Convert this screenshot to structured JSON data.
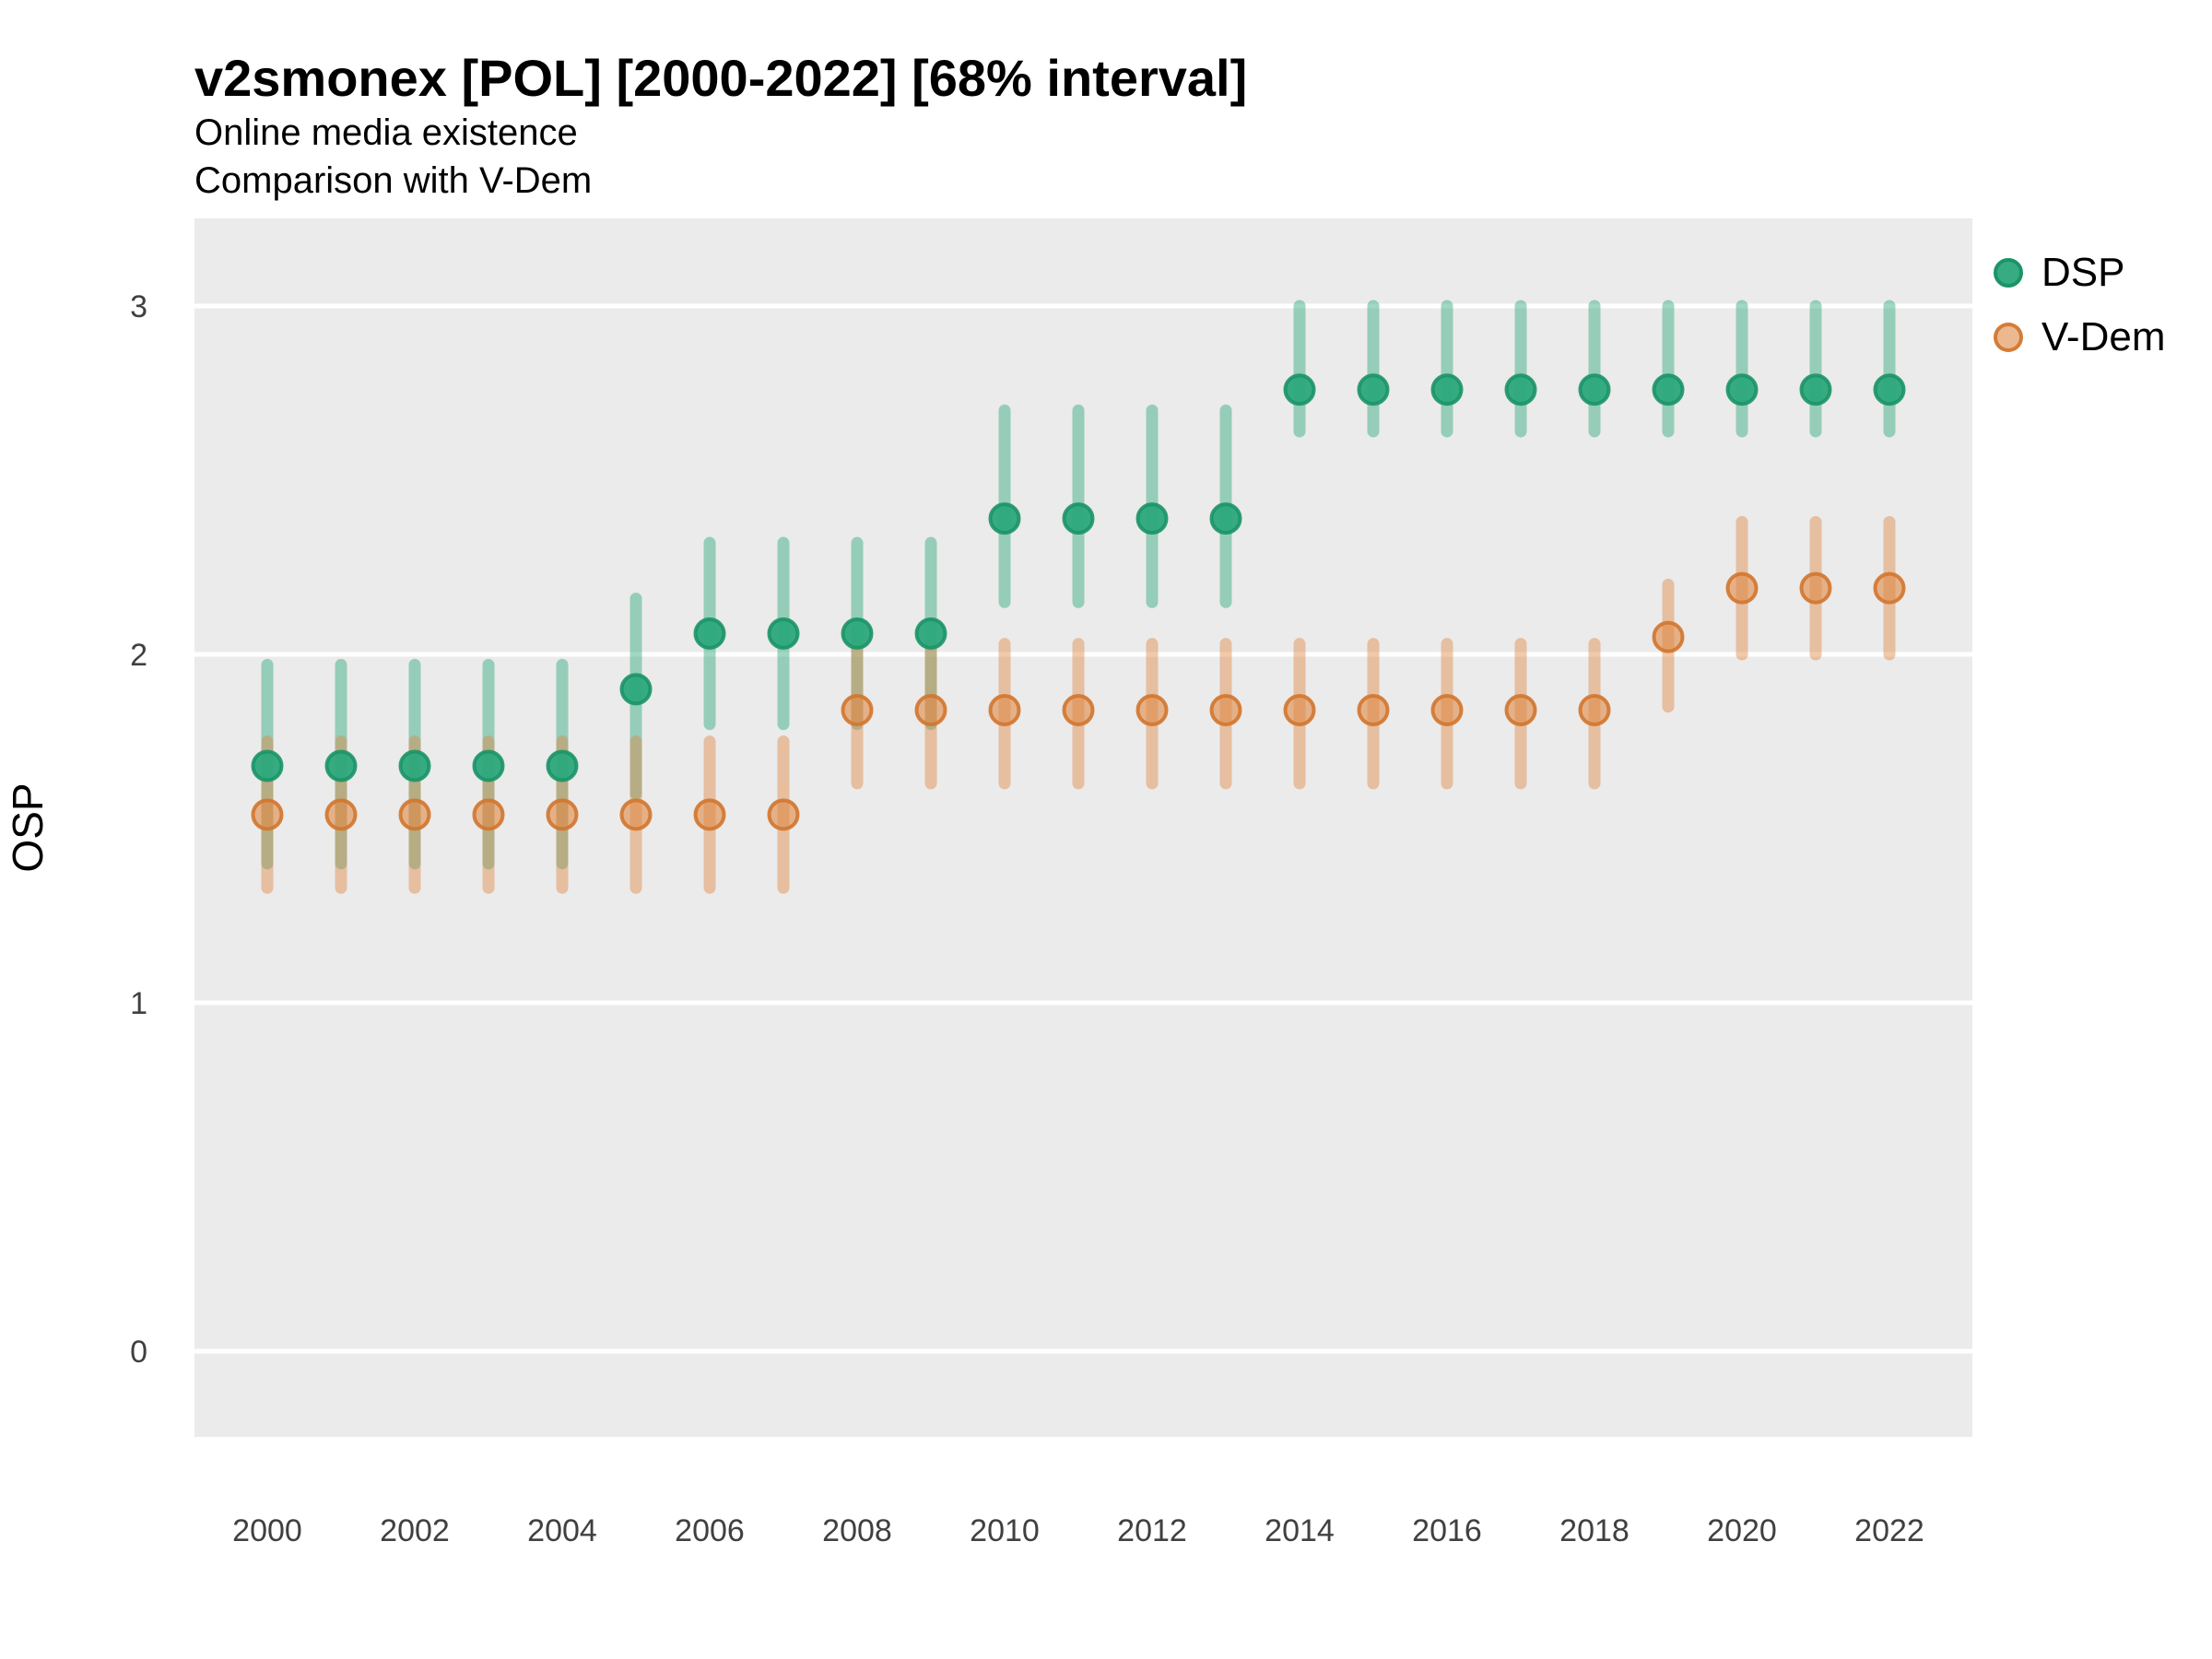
{
  "chart_data": {
    "type": "scatter",
    "title": "v2smonex [POL] [2000-2022] [68% interval]",
    "subtitle": [
      "Online media existence",
      "Comparison with V-Dem"
    ],
    "ylabel": "OSP",
    "xlabel": "",
    "interval_note": "68% interval",
    "x": [
      2000,
      2001,
      2002,
      2003,
      2004,
      2005,
      2006,
      2007,
      2008,
      2009,
      2010,
      2011,
      2012,
      2013,
      2014,
      2015,
      2016,
      2017,
      2018,
      2019,
      2020,
      2021,
      2022
    ],
    "x_ticks": [
      2000,
      2002,
      2004,
      2006,
      2008,
      2010,
      2012,
      2014,
      2016,
      2018,
      2020,
      2022
    ],
    "y_ticks": [
      0,
      1,
      2,
      3
    ],
    "ylim": [
      -0.28,
      3.25
    ],
    "grid": "horizontal-major-only",
    "legend_position": "right",
    "panel_color": "#EBEBEB",
    "gridline_color": "#FFFFFF",
    "tick_label_color": "#404040",
    "series": [
      {
        "name": "DSP",
        "color": "#2CA87C",
        "stroke": "#1B9467",
        "point_opacity": 0.95,
        "bar_opacity": 0.45,
        "values": [
          1.68,
          1.68,
          1.68,
          1.68,
          1.68,
          1.9,
          2.06,
          2.06,
          2.06,
          2.06,
          2.39,
          2.39,
          2.39,
          2.39,
          2.76,
          2.76,
          2.76,
          2.76,
          2.76,
          2.76,
          2.76,
          2.76,
          2.76
        ],
        "lower": [
          1.4,
          1.4,
          1.4,
          1.4,
          1.4,
          1.6,
          1.8,
          1.8,
          1.8,
          1.8,
          2.15,
          2.15,
          2.15,
          2.15,
          2.64,
          2.64,
          2.64,
          2.64,
          2.64,
          2.64,
          2.64,
          2.64,
          2.64
        ],
        "upper": [
          1.97,
          1.97,
          1.97,
          1.97,
          1.97,
          2.16,
          2.32,
          2.32,
          2.32,
          2.32,
          2.7,
          2.7,
          2.7,
          2.7,
          3.0,
          3.0,
          3.0,
          3.0,
          3.0,
          3.0,
          3.0,
          3.0,
          3.0
        ]
      },
      {
        "name": "V-Dem",
        "color": "#E08844",
        "stroke": "#D2762D",
        "point_opacity": 0.6,
        "bar_opacity": 0.45,
        "values": [
          1.54,
          1.54,
          1.54,
          1.54,
          1.54,
          1.54,
          1.54,
          1.54,
          1.84,
          1.84,
          1.84,
          1.84,
          1.84,
          1.84,
          1.84,
          1.84,
          1.84,
          1.84,
          1.84,
          2.05,
          2.19,
          2.19,
          2.19
        ],
        "lower": [
          1.33,
          1.33,
          1.33,
          1.33,
          1.33,
          1.33,
          1.33,
          1.33,
          1.63,
          1.63,
          1.63,
          1.63,
          1.63,
          1.63,
          1.63,
          1.63,
          1.63,
          1.63,
          1.63,
          1.85,
          2.0,
          2.0,
          2.0
        ],
        "upper": [
          1.75,
          1.75,
          1.75,
          1.75,
          1.75,
          1.75,
          1.75,
          1.75,
          2.03,
          2.03,
          2.03,
          2.03,
          2.03,
          2.03,
          2.03,
          2.03,
          2.03,
          2.03,
          2.03,
          2.2,
          2.38,
          2.38,
          2.38
        ]
      }
    ]
  }
}
